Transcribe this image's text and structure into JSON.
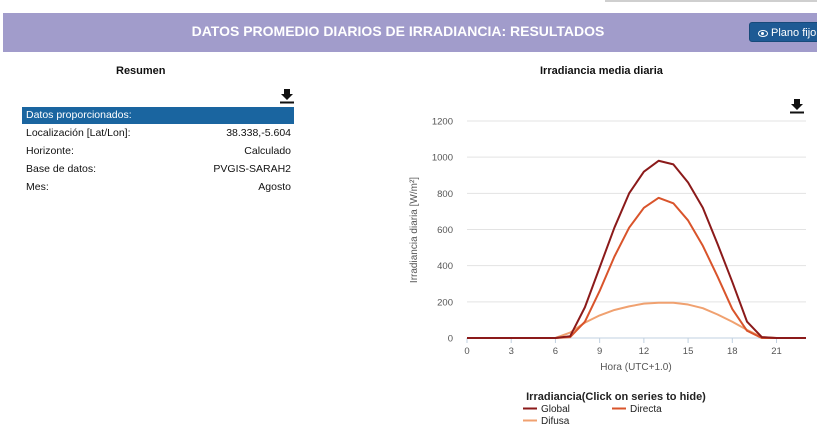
{
  "header": {
    "title": "DATOS PROMEDIO DIARIOS DE IRRADIANCIA: RESULTADOS",
    "plano_button": "Plano fijo"
  },
  "summary": {
    "title": "Resumen",
    "table_header": "Datos proporcionados:",
    "rows": [
      {
        "label": "Localización [Lat/Lon]:",
        "value": "38.338,-5.604"
      },
      {
        "label": "Horizonte:",
        "value": "Calculado"
      },
      {
        "label": "Base de datos:",
        "value": "PVGIS-SARAH2"
      },
      {
        "label": "Mes:",
        "value": "Agosto"
      }
    ]
  },
  "chart_data": {
    "type": "line",
    "title": "Irradiancia media diaria",
    "xlabel": "Hora (UTC+1.0)",
    "ylabel": "Irradiancia diaria [W/m²]",
    "xlim": [
      0,
      23
    ],
    "ylim": [
      0,
      1200
    ],
    "xticks": [
      0,
      3,
      6,
      9,
      12,
      15,
      18,
      21
    ],
    "yticks": [
      0,
      200,
      400,
      600,
      800,
      1000,
      1200
    ],
    "grid": true,
    "legend_title": "Irradiancia(Click on series to hide)",
    "legend_position": "bottom",
    "x": [
      0,
      1,
      2,
      3,
      4,
      5,
      6,
      7,
      8,
      9,
      10,
      11,
      12,
      13,
      14,
      15,
      16,
      17,
      18,
      19,
      20,
      21,
      22,
      23
    ],
    "series": [
      {
        "name": "Global",
        "color": "#8b1a1a",
        "values": [
          0,
          0,
          0,
          0,
          0,
          0,
          0,
          10,
          170,
          390,
          610,
          800,
          920,
          980,
          960,
          860,
          720,
          520,
          310,
          90,
          5,
          0,
          0,
          0
        ]
      },
      {
        "name": "Directa",
        "color": "#d9542b",
        "values": [
          0,
          0,
          0,
          0,
          0,
          0,
          0,
          5,
          90,
          260,
          450,
          610,
          720,
          775,
          745,
          650,
          510,
          340,
          160,
          40,
          0,
          0,
          0,
          0
        ]
      },
      {
        "name": "Difusa",
        "color": "#f0a170",
        "values": [
          0,
          0,
          0,
          0,
          0,
          0,
          0,
          30,
          85,
          125,
          155,
          175,
          190,
          195,
          195,
          185,
          165,
          130,
          90,
          45,
          5,
          0,
          0,
          0
        ]
      }
    ]
  }
}
